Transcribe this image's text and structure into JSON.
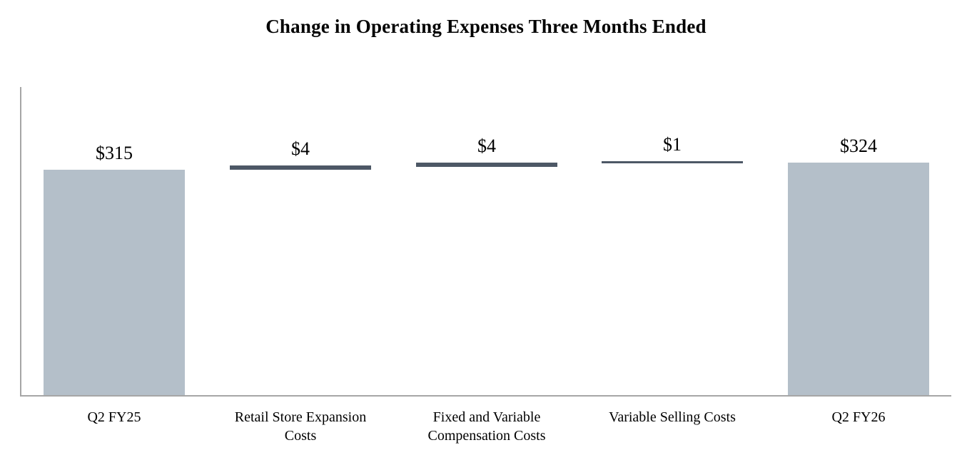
{
  "page": {
    "background": "#ffffff"
  },
  "chart_data": {
    "type": "bar",
    "subtype": "waterfall",
    "title": "Change in Operating Expenses Three Months Ended",
    "xlabel": "",
    "ylabel": "",
    "categories": [
      "Q2 FY25",
      "Retail Store Expansion Costs",
      "Fixed and Variable Compensation Costs",
      "Variable Selling Costs",
      "Q2 FY26"
    ],
    "bars": [
      {
        "category": "Q2 FY25",
        "value": 315,
        "base": 0,
        "label": "$315",
        "role": "total"
      },
      {
        "category": "Retail Store Expansion Costs",
        "value": 4,
        "base": 315,
        "label": "$4",
        "role": "delta"
      },
      {
        "category": "Fixed and Variable Compensation Costs",
        "value": 4,
        "base": 319,
        "label": "$4",
        "role": "delta"
      },
      {
        "category": "Variable Selling Costs",
        "value": 1,
        "base": 323,
        "label": "$1",
        "role": "delta"
      },
      {
        "category": "Q2 FY26",
        "value": 324,
        "base": 0,
        "label": "$324",
        "role": "total"
      }
    ],
    "ylim": [
      0,
      430
    ],
    "grid": false,
    "legend": false,
    "axes_visible": {
      "x": true,
      "y": true
    },
    "colors": {
      "total": "#b4bfc9",
      "delta": "#4d5866",
      "axis": "#a6a6a6",
      "text": "#000000"
    }
  }
}
